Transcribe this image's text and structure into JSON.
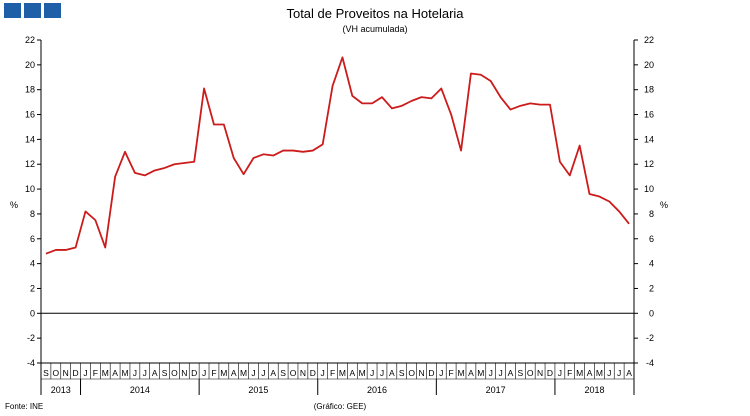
{
  "header": {
    "logo_colors": [
      "#1f5fa8",
      "#1f5fa8",
      "#1f5fa8"
    ]
  },
  "footer": {
    "source": "Fonte: INE",
    "credit": "(Gráfico: GEE)"
  },
  "chart_data": {
    "type": "line",
    "title": "Total de Proveitos na Hotelaria",
    "subtitle": "(VH acumulada)",
    "ylabel": "%",
    "ylabel_right": "%",
    "ylim": [
      -4,
      22
    ],
    "yticks": [
      22,
      20,
      18,
      16,
      14,
      12,
      10,
      8,
      6,
      4,
      2,
      0,
      -2,
      -4
    ],
    "grid": false,
    "line_color": "#cc1b1b",
    "x": [
      "S",
      "O",
      "N",
      "D",
      "J",
      "F",
      "M",
      "A",
      "M",
      "J",
      "J",
      "A",
      "S",
      "O",
      "N",
      "D",
      "J",
      "F",
      "M",
      "A",
      "M",
      "J",
      "J",
      "A",
      "S",
      "O",
      "N",
      "D",
      "J",
      "F",
      "M",
      "A",
      "M",
      "J",
      "J",
      "A",
      "S",
      "O",
      "N",
      "D",
      "J",
      "F",
      "M",
      "A",
      "M",
      "J",
      "J",
      "A",
      "S",
      "O",
      "N",
      "D",
      "J",
      "F",
      "M",
      "A",
      "M",
      "J",
      "J",
      "A"
    ],
    "years": [
      {
        "label": "2013",
        "start": 0,
        "count": 4
      },
      {
        "label": "2014",
        "start": 4,
        "count": 12
      },
      {
        "label": "2015",
        "start": 16,
        "count": 12
      },
      {
        "label": "2016",
        "start": 28,
        "count": 12
      },
      {
        "label": "2017",
        "start": 40,
        "count": 12
      },
      {
        "label": "2018",
        "start": 52,
        "count": 8
      }
    ],
    "series": [
      {
        "values": [
          4.8,
          5.1,
          5.1,
          5.3,
          8.2,
          7.5,
          5.3,
          11.0,
          13.0,
          11.3,
          11.1,
          11.5,
          11.7,
          12.0,
          12.1,
          12.2,
          18.1,
          15.2,
          15.2,
          12.5,
          11.2,
          12.5,
          12.8,
          12.7,
          13.1,
          13.1,
          13.0,
          13.1,
          13.6,
          18.3,
          20.6,
          17.5,
          16.9,
          16.9,
          17.4,
          16.5,
          16.7,
          17.1,
          17.4,
          17.3,
          18.1,
          16.0,
          13.1,
          19.3,
          19.2,
          18.7,
          17.4,
          16.4,
          16.7,
          16.9,
          16.8,
          16.8,
          12.2,
          11.1,
          13.5,
          9.6,
          9.4,
          9.0,
          8.2,
          7.2
        ]
      }
    ]
  }
}
